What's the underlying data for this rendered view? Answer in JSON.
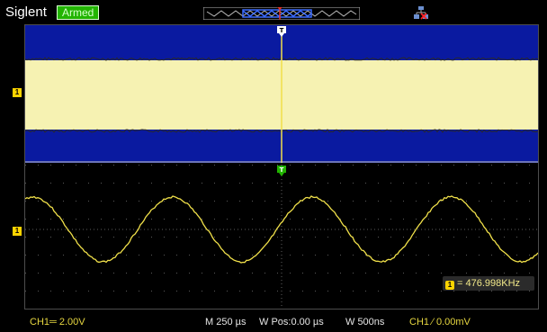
{
  "header": {
    "brand": "Siglent",
    "status": "Armed"
  },
  "icons": {
    "network": "network-disconnected-icon",
    "trigger_marker": "T"
  },
  "channel_marker_label": "1",
  "measurement": {
    "frequency_text": "= 476.998KHz"
  },
  "status_bar": {
    "ch1_scale": "CH1═ 2.00V",
    "main_timebase": "M 250 µs",
    "window_position": "W Pos:0.00 µs",
    "window_timebase": "W 500ns",
    "trigger_info": "CH1 ⁄ 0.00mV"
  },
  "colors": {
    "trace": "#f0e04a",
    "zoom_band": "#f6f2b2",
    "zoom_bg": "#0a1aa0",
    "trigger_line": "#f0e04a",
    "trigger_marker_top": "#ffffff",
    "trigger_marker_main": "#22b400"
  }
}
